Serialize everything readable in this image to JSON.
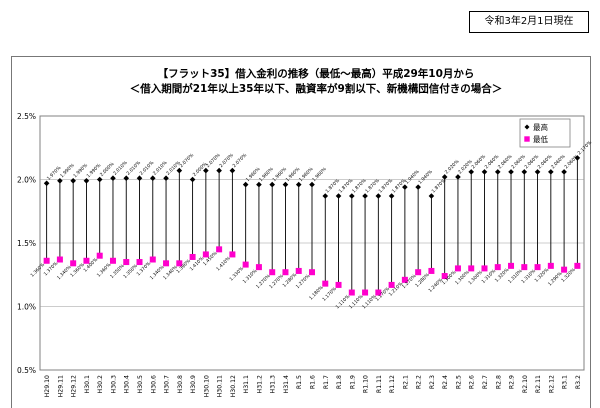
{
  "header": {
    "date_label": "令和3年2月1日現在"
  },
  "chart_data": {
    "type": "line",
    "title": "【フラット35】借入金利の推移（最低～最高）平成29年10月から",
    "subtitle": "＜借入期間が21年以上35年以下、融資率が9割以下、新機構団信付きの場合＞",
    "xlabel": "",
    "ylabel": "",
    "ylim": [
      0.5,
      2.5
    ],
    "yticks": [
      "0.5%",
      "1.0%",
      "1.5%",
      "2.0%",
      "2.5%"
    ],
    "grid": true,
    "legend_position": "top-right",
    "categories": [
      "H29.10",
      "H29.11",
      "H29.12",
      "H30.1",
      "H30.2",
      "H30.3",
      "H30.4",
      "H30.5",
      "H30.6",
      "H30.7",
      "H30.8",
      "H30.9",
      "H30.10",
      "H30.11",
      "H30.12",
      "H31.1",
      "H31.2",
      "H31.3",
      "H31.4",
      "R1.5",
      "R1.6",
      "R1.7",
      "R1.8",
      "R1.9",
      "R1.10",
      "R1.11",
      "R1.12",
      "R2.1",
      "R2.2",
      "R2.3",
      "R2.4",
      "R2.5",
      "R2.6",
      "R2.7",
      "R2.8",
      "R2.9",
      "R2.10",
      "R2.11",
      "R2.12",
      "R3.1",
      "R3.2"
    ],
    "series": [
      {
        "name": "最高",
        "color": "#000000",
        "values": [
          1.97,
          1.99,
          1.99,
          1.99,
          2.0,
          2.01,
          2.01,
          2.01,
          2.01,
          2.01,
          2.07,
          2.0,
          2.07,
          2.07,
          2.07,
          1.96,
          1.96,
          1.96,
          1.96,
          1.96,
          1.96,
          1.87,
          1.87,
          1.87,
          1.87,
          1.87,
          1.87,
          1.94,
          1.94,
          1.87,
          2.02,
          2.02,
          2.06,
          2.06,
          2.06,
          2.06,
          2.06,
          2.06,
          2.06,
          2.06,
          2.17
        ],
        "labels": [
          "1.970%",
          "1.990%",
          "1.990%",
          "1.990%",
          "2.000%",
          "2.010%",
          "2.010%",
          "2.010%",
          "2.010%",
          "2.010%",
          "2.070%",
          "2.000%",
          "2.070%",
          "2.070%",
          "2.070%",
          "1.960%",
          "1.960%",
          "1.960%",
          "1.960%",
          "1.960%",
          "1.960%",
          "1.870%",
          "1.870%",
          "1.870%",
          "1.870%",
          "1.870%",
          "1.870%",
          "1.940%",
          "1.940%",
          "1.870%",
          "2.020%",
          "2.020%",
          "2.060%",
          "2.060%",
          "2.060%",
          "2.060%",
          "2.060%",
          "2.060%",
          "2.060%",
          "2.060%",
          "2.170%"
        ]
      },
      {
        "name": "最低",
        "color": "#ff00cc",
        "values": [
          1.36,
          1.37,
          1.34,
          1.36,
          1.4,
          1.36,
          1.35,
          1.35,
          1.37,
          1.34,
          1.34,
          1.39,
          1.41,
          1.45,
          1.41,
          1.33,
          1.31,
          1.27,
          1.27,
          1.28,
          1.27,
          1.18,
          1.17,
          1.11,
          1.11,
          1.11,
          1.17,
          1.21,
          1.27,
          1.28,
          1.24,
          1.3,
          1.3,
          1.3,
          1.31,
          1.32,
          1.31,
          1.31,
          1.32,
          1.29,
          1.32
        ],
        "labels": [
          "1.360%",
          "1.370%",
          "1.340%",
          "1.360%",
          "1.400%",
          "1.360%",
          "1.350%",
          "1.350%",
          "1.370%",
          "1.340%",
          "1.340%",
          "1.390%",
          "1.410%",
          "1.450%",
          "1.410%",
          "1.330%",
          "1.310%",
          "1.270%",
          "1.270%",
          "1.280%",
          "1.270%",
          "1.180%",
          "1.170%",
          "1.110%",
          "1.110%",
          "1.110%",
          "1.170%",
          "1.210%",
          "1.270%",
          "1.280%",
          "1.240%",
          "1.300%",
          "1.300%",
          "1.300%",
          "1.310%",
          "1.320%",
          "1.310%",
          "1.310%",
          "1.320%",
          "1.290%",
          "1.320%"
        ]
      }
    ]
  }
}
